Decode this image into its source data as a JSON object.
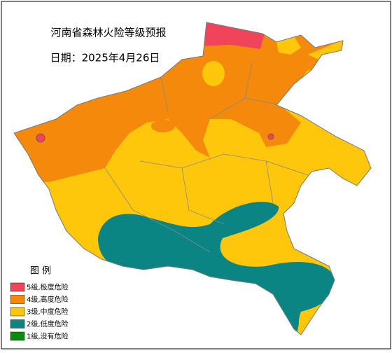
{
  "title": "河南省森林火险等级预报",
  "date": "日期：2025年4月26日",
  "legend": {
    "title": "图  例",
    "items": [
      {
        "label": "5级,极度危险",
        "color": "#f0445a"
      },
      {
        "label": "4级,高度危险",
        "color": "#f5890c"
      },
      {
        "label": "3级,中度危险",
        "color": "#fec70b"
      },
      {
        "label": "2级,低度危险",
        "color": "#0a8583"
      },
      {
        "label": "1级,没有危险",
        "color": "#0b8a0b"
      }
    ]
  }
}
